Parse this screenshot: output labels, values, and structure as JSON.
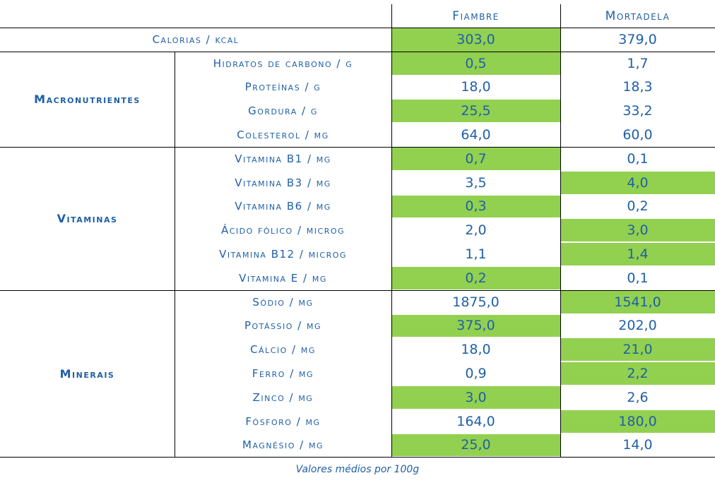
{
  "header": {
    "col1": "Fiambre",
    "col2": "Mortadela"
  },
  "calorias": {
    "label": "Calorias / kcal",
    "fiambre": "303,0",
    "mortadela": "379,0",
    "highlight": "fiambre"
  },
  "groups": [
    {
      "name": "Macronutrientes",
      "rows": [
        {
          "label": "Hidratos de carbono / g",
          "fiambre": "0,5",
          "mortadela": "1,7",
          "highlight": "fiambre"
        },
        {
          "label": "Proteínas / g",
          "fiambre": "18,0",
          "mortadela": "18,3",
          "highlight": ""
        },
        {
          "label": "Gordura / g",
          "fiambre": "25,5",
          "mortadela": "33,2",
          "highlight": "fiambre"
        },
        {
          "label": "Colesterol / mg",
          "fiambre": "64,0",
          "mortadela": "60,0",
          "highlight": ""
        }
      ]
    },
    {
      "name": "Vitaminas",
      "rows": [
        {
          "label": "Vitamina B1 / mg",
          "fiambre": "0,7",
          "mortadela": "0,1",
          "highlight": "fiambre"
        },
        {
          "label": "Vitamina B3 / mg",
          "fiambre": "3,5",
          "mortadela": "4,0",
          "highlight": "mortadela"
        },
        {
          "label": "Vitamina B6 / mg",
          "fiambre": "0,3",
          "mortadela": "0,2",
          "highlight": "fiambre"
        },
        {
          "label": "Ácido fólico / microg",
          "fiambre": "2,0",
          "mortadela": "3,0",
          "highlight": "mortadela"
        },
        {
          "label": "Vitamina B12 / microg",
          "fiambre": "1,1",
          "mortadela": "1,4",
          "highlight": "mortadela"
        },
        {
          "label": "Vitamina E / mg",
          "fiambre": "0,2",
          "mortadela": "0,1",
          "highlight": "fiambre"
        }
      ]
    },
    {
      "name": "Minerais",
      "rows": [
        {
          "label": "Sódio / mg",
          "fiambre": "1875,0",
          "mortadela": "1541,0",
          "highlight": "mortadela"
        },
        {
          "label": "Potássio / mg",
          "fiambre": "375,0",
          "mortadela": "202,0",
          "highlight": "fiambre"
        },
        {
          "label": "Cálcio / mg",
          "fiambre": "18,0",
          "mortadela": "21,0",
          "highlight": "mortadela"
        },
        {
          "label": "Ferro / mg",
          "fiambre": "0,9",
          "mortadela": "2,2",
          "highlight": "mortadela"
        },
        {
          "label": "Zinco / mg",
          "fiambre": "3,0",
          "mortadela": "2,6",
          "highlight": "fiambre"
        },
        {
          "label": "Fósforo / mg",
          "fiambre": "164,0",
          "mortadela": "180,0",
          "highlight": "mortadela"
        },
        {
          "label": "Magnésio / mg",
          "fiambre": "25,0",
          "mortadela": "14,0",
          "highlight": "fiambre"
        }
      ]
    }
  ],
  "footer": "Valores médios por 100g",
  "colors": {
    "text": "#1f5fa6",
    "highlight": "#92d050",
    "rule": "#000000"
  }
}
